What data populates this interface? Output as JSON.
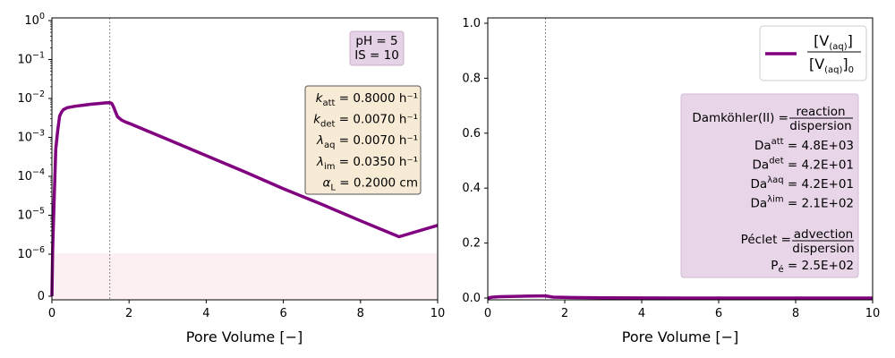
{
  "colors": {
    "series": "#800080",
    "box_ph": "#e6d2e6",
    "box_rates": "#f7ebd6",
    "box_damk": "#e8d6e8",
    "shade": "#fdf0f3",
    "vline": "#888888"
  },
  "chart_data": [
    {
      "type": "line",
      "xlabel": "Pore Volume [−]",
      "ylabel": "",
      "xlim": [
        0,
        10
      ],
      "yscale": "symlog",
      "ylim": [
        0,
        1
      ],
      "xticks": [
        "0",
        "2",
        "4",
        "6",
        "8",
        "10"
      ],
      "yticks": [
        {
          "value": 1,
          "label": "10",
          "exp": "0"
        },
        {
          "value": 0.1,
          "label": "10",
          "exp": "−1"
        },
        {
          "value": 0.01,
          "label": "10",
          "exp": "−2"
        },
        {
          "value": 0.001,
          "label": "10",
          "exp": "−3"
        },
        {
          "value": 0.0001,
          "label": "10",
          "exp": "−4"
        },
        {
          "value": 1e-05,
          "label": "10",
          "exp": "−5"
        },
        {
          "value": 1e-06,
          "label": "10",
          "exp": "−6"
        },
        {
          "value": 0,
          "label": "0",
          "exp": ""
        }
      ],
      "vline_x": 1.5,
      "grid": false,
      "series": [
        {
          "x": [
            0,
            0.02,
            0.05,
            0.1,
            0.15,
            0.2,
            0.25,
            0.3,
            0.4,
            0.6,
            0.8,
            1.0,
            1.2,
            1.4,
            1.5,
            1.55,
            1.6,
            1.65,
            1.7,
            1.8,
            1.9,
            2.0,
            3.0,
            4.0,
            5.0,
            6.0,
            7.0,
            8.0,
            9.0,
            10.0
          ],
          "y": [
            0,
            1.5e-06,
            1.5e-05,
            0.0005,
            0.0015,
            0.0035,
            0.0045,
            0.0052,
            0.0058,
            0.0063,
            0.0067,
            0.0071,
            0.0074,
            0.0077,
            0.0078,
            0.0075,
            0.006,
            0.0045,
            0.0034,
            0.0028,
            0.0025,
            0.0023,
            0.00089,
            0.00034,
            0.00013,
            4.8e-05,
            1.9e-05,
            7.2e-06,
            2.8e-06,
            5.5e-06
          ]
        }
      ],
      "annotations": {
        "ph_box": [
          "pH = 5",
          "IS = 10"
        ],
        "rates": [
          {
            "sym": "k",
            "sub": "att",
            "value": " = 0.8000 h⁻¹"
          },
          {
            "sym": "k",
            "sub": "det",
            "value": " = 0.0070 h⁻¹"
          },
          {
            "sym": "λ",
            "sub": "aq",
            "value": " = 0.0070 h⁻¹"
          },
          {
            "sym": "λ",
            "sub": "im",
            "value": " = 0.0350 h⁻¹"
          },
          {
            "sym": "α",
            "sub": "L",
            "value": " = 0.2000 cm"
          }
        ]
      }
    },
    {
      "type": "line",
      "xlabel": "Pore Volume [−]",
      "ylabel": "",
      "xlim": [
        0,
        10
      ],
      "ylim": [
        0,
        1.0
      ],
      "xticks": [
        "0",
        "2",
        "4",
        "6",
        "8",
        "10"
      ],
      "yticks": [
        "0.0",
        "0.2",
        "0.4",
        "0.6",
        "0.8",
        "1.0"
      ],
      "vline_x": 1.5,
      "grid": false,
      "legend": {
        "placement": "top-right",
        "num": "[V",
        "num_sub": "(aq)",
        "num_end": "]",
        "den": "[V",
        "den_sub": "(aq)",
        "den_end": "]",
        "den_outer_sub": "0"
      },
      "series": [
        {
          "x": [
            0,
            0.1,
            0.3,
            0.6,
            1.0,
            1.4,
            1.5,
            1.7,
            2.0,
            3.0,
            4.0,
            5.0,
            6.0,
            7.0,
            8.0,
            9.0,
            10.0
          ],
          "y": [
            0,
            0.003,
            0.005,
            0.006,
            0.0068,
            0.0077,
            0.0078,
            0.0034,
            0.0023,
            0.00089,
            0.00034,
            0.00013,
            4.8e-05,
            1.9e-05,
            7.2e-06,
            2.8e-06,
            5.5e-06
          ]
        }
      ],
      "annotations": {
        "damk_label": "Damköhler(II) = ",
        "damk_num": "reaction",
        "damk_den": "dispersion",
        "da": [
          {
            "sup": "att",
            "value": " = 4.8E+03"
          },
          {
            "sup": "det",
            "value": " = 4.2E+01"
          },
          {
            "sup": "λaq",
            "value": " = 4.2E+01"
          },
          {
            "sup": "λim",
            "value": " = 2.1E+02"
          }
        ],
        "da_prefix": "Da",
        "peclet_label": "Péclet = ",
        "peclet_num": "advection",
        "peclet_den": "dispersion",
        "pe_sym": "P",
        "pe_sub": "é",
        "pe_value": " = 2.5E+02"
      }
    }
  ]
}
